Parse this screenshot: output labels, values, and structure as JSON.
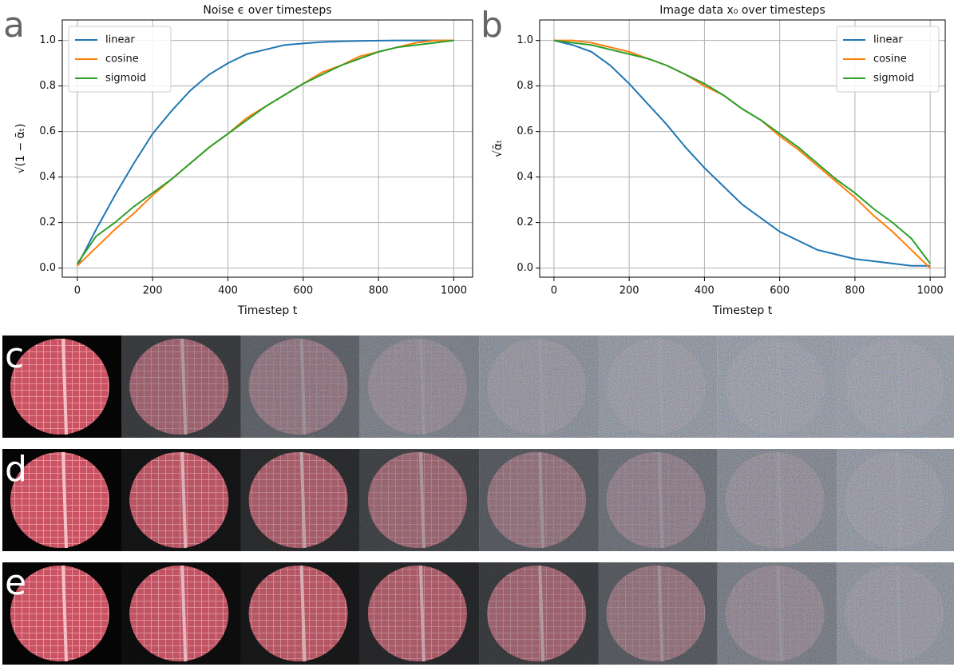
{
  "chart_data": [
    {
      "type": "line",
      "panel_label": "a",
      "title": "Noise ϵ over timesteps",
      "xlabel": "Timestep t",
      "ylabel": "√(1 − ᾱₜ)",
      "x": [
        0,
        50,
        100,
        150,
        200,
        250,
        300,
        350,
        400,
        450,
        500,
        550,
        600,
        650,
        700,
        750,
        800,
        850,
        900,
        950,
        1000
      ],
      "series": [
        {
          "name": "linear",
          "color": "#1f77b4",
          "values": [
            0.01,
            0.17,
            0.32,
            0.46,
            0.59,
            0.69,
            0.78,
            0.85,
            0.9,
            0.94,
            0.96,
            0.98,
            0.987,
            0.993,
            0.996,
            0.998,
            0.999,
            1.0,
            1.0,
            1.0,
            1.0
          ]
        },
        {
          "name": "cosine",
          "color": "#ff7f0e",
          "values": [
            0.01,
            0.09,
            0.17,
            0.24,
            0.32,
            0.39,
            0.46,
            0.53,
            0.59,
            0.66,
            0.71,
            0.76,
            0.81,
            0.86,
            0.89,
            0.93,
            0.95,
            0.97,
            0.99,
            1.0,
            1.0
          ]
        },
        {
          "name": "sigmoid",
          "color": "#2ca02c",
          "values": [
            0.02,
            0.14,
            0.2,
            0.27,
            0.33,
            0.39,
            0.46,
            0.53,
            0.59,
            0.65,
            0.71,
            0.76,
            0.81,
            0.85,
            0.89,
            0.92,
            0.95,
            0.97,
            0.98,
            0.99,
            1.0
          ]
        }
      ],
      "xlim": [
        -40,
        1050
      ],
      "ylim": [
        -0.04,
        1.09
      ],
      "xticks": [
        0,
        200,
        400,
        600,
        800,
        1000
      ],
      "yticks": [
        {
          "value": 0,
          "label": "0.0"
        },
        0.2,
        0.4,
        0.6,
        0.8,
        {
          "value": 1,
          "label": "1.0"
        }
      ],
      "grid": true,
      "legend": "upper-left"
    },
    {
      "type": "line",
      "panel_label": "b",
      "title": "Image data x₀ over timesteps",
      "xlabel": "Timestep t",
      "ylabel": "√ᾱₜ",
      "x": [
        0,
        50,
        100,
        150,
        200,
        250,
        300,
        350,
        400,
        450,
        500,
        550,
        600,
        650,
        700,
        750,
        800,
        850,
        900,
        950,
        1000
      ],
      "series": [
        {
          "name": "linear",
          "color": "#1f77b4",
          "values": [
            1.0,
            0.98,
            0.95,
            0.89,
            0.81,
            0.72,
            0.63,
            0.53,
            0.44,
            0.36,
            0.28,
            0.22,
            0.16,
            0.12,
            0.08,
            0.06,
            0.04,
            0.03,
            0.02,
            0.01,
            0.01
          ]
        },
        {
          "name": "cosine",
          "color": "#ff7f0e",
          "values": [
            1.0,
            1.0,
            0.99,
            0.97,
            0.95,
            0.92,
            0.89,
            0.85,
            0.8,
            0.76,
            0.7,
            0.65,
            0.58,
            0.52,
            0.45,
            0.38,
            0.31,
            0.23,
            0.16,
            0.08,
            0.0
          ]
        },
        {
          "name": "sigmoid",
          "color": "#2ca02c",
          "values": [
            1.0,
            0.99,
            0.98,
            0.96,
            0.94,
            0.92,
            0.89,
            0.85,
            0.81,
            0.76,
            0.7,
            0.65,
            0.59,
            0.53,
            0.46,
            0.39,
            0.33,
            0.26,
            0.2,
            0.13,
            0.02
          ]
        }
      ],
      "xlim": [
        -38,
        1040
      ],
      "ylim": [
        -0.04,
        1.09
      ],
      "xticks": [
        0,
        200,
        400,
        600,
        800,
        1000
      ],
      "yticks": [
        {
          "value": 0,
          "label": "0.0"
        },
        0.2,
        0.4,
        0.6,
        0.8,
        {
          "value": 1,
          "label": "1.0"
        }
      ],
      "grid": true,
      "legend": "upper-right"
    }
  ],
  "image_rows": [
    {
      "label": "c"
    },
    {
      "label": "d"
    },
    {
      "label": "e"
    }
  ]
}
